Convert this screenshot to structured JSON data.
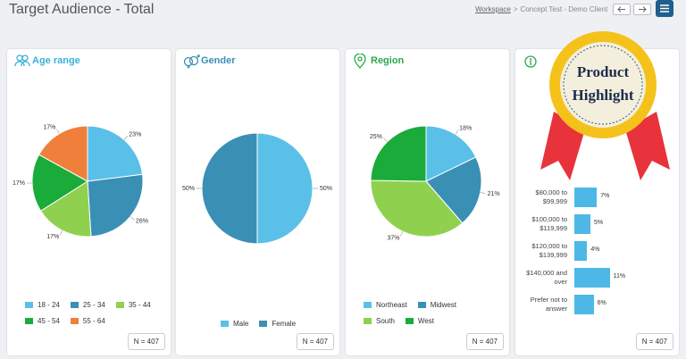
{
  "header": {
    "title": "Target Audience - Total",
    "breadcrumb": {
      "link": "Workspace",
      "separator": ">",
      "current": "Concept Test - Demo Client"
    }
  },
  "cards": [
    {
      "title": "Age range",
      "chart": {
        "type": "pie",
        "categories": [
          "18 - 24",
          "25 - 34",
          "35 - 44",
          "45 - 54",
          "55 - 64"
        ],
        "values": [
          23,
          26,
          17,
          17,
          17
        ],
        "value_labels": [
          "23%",
          "26%",
          "17%",
          "17%",
          "17%"
        ],
        "colors": [
          "#5bc0e8",
          "#3a8fb5",
          "#8fd14f",
          "#1aab3a",
          "#f07f3c"
        ]
      },
      "n": "N = 407"
    },
    {
      "title": "Gender",
      "chart": {
        "type": "pie",
        "categories": [
          "Male",
          "Female"
        ],
        "values": [
          50,
          50
        ],
        "value_labels": [
          "50%",
          "50%"
        ],
        "colors": [
          "#5bc0e8",
          "#3a8fb5"
        ]
      },
      "n": "N = 407"
    },
    {
      "title": "Region",
      "chart": {
        "type": "pie",
        "categories": [
          "Northeast",
          "Midwest",
          "South",
          "West"
        ],
        "values": [
          18,
          21,
          37,
          25
        ],
        "value_labels": [
          "18%",
          "21%",
          "37%",
          "25%"
        ],
        "colors": [
          "#5bc0e8",
          "#3a8fb5",
          "#8fd14f",
          "#1aab3a"
        ]
      },
      "n": "N = 407"
    },
    {
      "chart": {
        "type": "bar",
        "categories": [
          "$80,000 to $99,999",
          "$100,000 to $119,999",
          "$120,000 to $139,999",
          "$140,000 and over",
          "Prefer not to answer"
        ],
        "values": [
          7,
          5,
          4,
          11,
          6
        ],
        "value_labels": [
          "7%",
          "5%",
          "4%",
          "11%",
          "6%"
        ],
        "color": "#4db8e6"
      },
      "n": "N = 407"
    }
  ],
  "badge": "Product Highlight"
}
